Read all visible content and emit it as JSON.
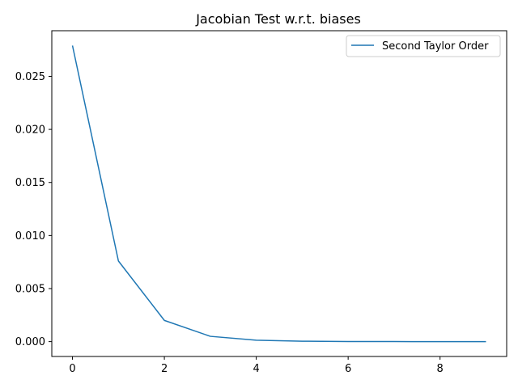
{
  "chart_data": {
    "type": "line",
    "title": "Jacobian Test w.r.t. biases",
    "xlabel": "",
    "ylabel": "",
    "xlim": [
      -0.45,
      9.45
    ],
    "ylim": [
      -0.0014,
      0.0293
    ],
    "x_ticks": [
      0,
      2,
      4,
      6,
      8
    ],
    "x_tick_labels": [
      "0",
      "2",
      "4",
      "6",
      "8"
    ],
    "y_ticks": [
      0.0,
      0.005,
      0.01,
      0.015,
      0.02,
      0.025
    ],
    "y_tick_labels": [
      "0.000",
      "0.005",
      "0.010",
      "0.015",
      "0.020",
      "0.025"
    ],
    "grid": false,
    "legend": {
      "position": "top-right"
    },
    "series": [
      {
        "name": "Second Taylor Order",
        "color": "#1f77b4",
        "x": [
          0,
          1,
          2,
          3,
          4,
          5,
          6,
          7,
          8,
          9
        ],
        "y": [
          0.0279,
          0.0076,
          0.002,
          0.0005,
          0.00013,
          4e-05,
          1e-05,
          5e-06,
          2e-06,
          1e-06
        ]
      }
    ]
  }
}
